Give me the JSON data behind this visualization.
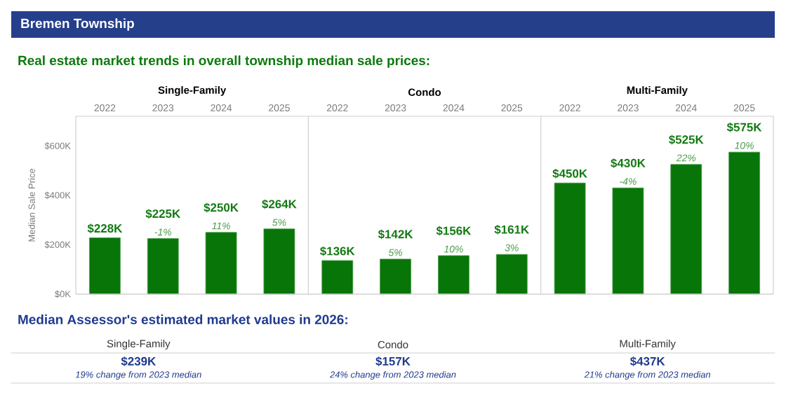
{
  "chart_data": [
    {
      "type": "other",
      "title": "Bremen Township",
      "subtitle": "Real estate market trends in overall township median sale prices:"
    },
    {
      "type": "bar",
      "title": "Single-Family",
      "categories": [
        "2022",
        "2023",
        "2024",
        "2025"
      ],
      "values": [
        228,
        225,
        250,
        264
      ],
      "value_labels": [
        "$228K",
        "$225K",
        "$250K",
        "$264K"
      ],
      "color": "#087508",
      "ylabel": "Median Sale Price",
      "ylim": [
        0,
        720
      ],
      "yticks": [
        {
          "value": 0,
          "label": "$0K"
        },
        {
          "value": 200,
          "label": "$200K"
        },
        {
          "value": 400,
          "label": "$400K"
        },
        {
          "value": 600,
          "label": "$600K"
        }
      ],
      "annotations": [
        {
          "text": "-1%",
          "x": "2023",
          "y": 225
        },
        {
          "text": "11%",
          "x": "2024",
          "y": 250
        },
        {
          "text": "5%",
          "x": "2025",
          "y": 264
        }
      ]
    },
    {
      "type": "bar",
      "title": "Condo",
      "categories": [
        "2022",
        "2023",
        "2024",
        "2025"
      ],
      "values": [
        136,
        142,
        156,
        161
      ],
      "value_labels": [
        "$136K",
        "$142K",
        "$156K",
        "$161K"
      ],
      "color": "#087508",
      "ylim": [
        0,
        720
      ],
      "tick_labels": "x",
      "annotations": [
        {
          "text": "5%",
          "x": "2023",
          "y": 142
        },
        {
          "text": "10%",
          "x": "2024",
          "y": 156
        },
        {
          "text": "3%",
          "x": "2025",
          "y": 161
        }
      ]
    },
    {
      "type": "bar",
      "title": "Multi-Family",
      "categories": [
        "2022",
        "2023",
        "2024",
        "2025"
      ],
      "values": [
        450,
        430,
        525,
        575
      ],
      "value_labels": [
        "$450K",
        "$430K",
        "$525K",
        "$575K"
      ],
      "color": "#087508",
      "ylim": [
        0,
        720
      ],
      "tick_labels": "x",
      "annotations": [
        {
          "text": "-4%",
          "x": "2023",
          "y": 430
        },
        {
          "text": "22%",
          "x": "2024",
          "y": 525
        },
        {
          "text": "10%",
          "x": "2025",
          "y": 575
        }
      ]
    },
    {
      "type": "other",
      "title": "Median Assessor's estimated market values in 2026:",
      "categories": [
        "Single-Family",
        "Condo",
        "Multi-Family"
      ],
      "annotations": [
        "$239K",
        "19% change from 2023 median",
        "$157K",
        "24% change from 2023 median",
        "$437K",
        "21% change from 2023 median"
      ]
    }
  ]
}
